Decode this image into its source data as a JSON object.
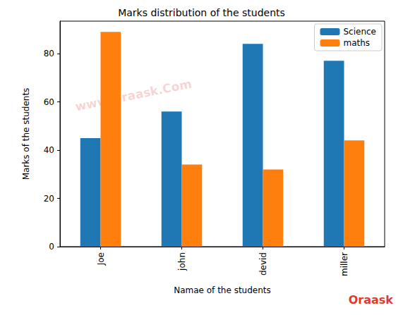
{
  "chart_data": {
    "type": "bar",
    "title": "Marks distribution of the students",
    "x_label": "Namae of the students",
    "y_label": "Marks of the students",
    "categories": [
      "Joe",
      "john",
      "devid",
      "miller"
    ],
    "series": [
      {
        "name": "Science",
        "color": "#1f77b4",
        "values": [
          45,
          56,
          84,
          77
        ]
      },
      {
        "name": "maths",
        "color": "#ff7f0e",
        "values": [
          89,
          34,
          32,
          44
        ]
      }
    ],
    "ylim": [
      0,
      93.45
    ],
    "yticks": [
      0,
      20,
      40,
      60,
      80
    ],
    "grid": false,
    "legend": "upper right",
    "annotations": [
      "www.Oraask.Com",
      "Oraask"
    ]
  }
}
